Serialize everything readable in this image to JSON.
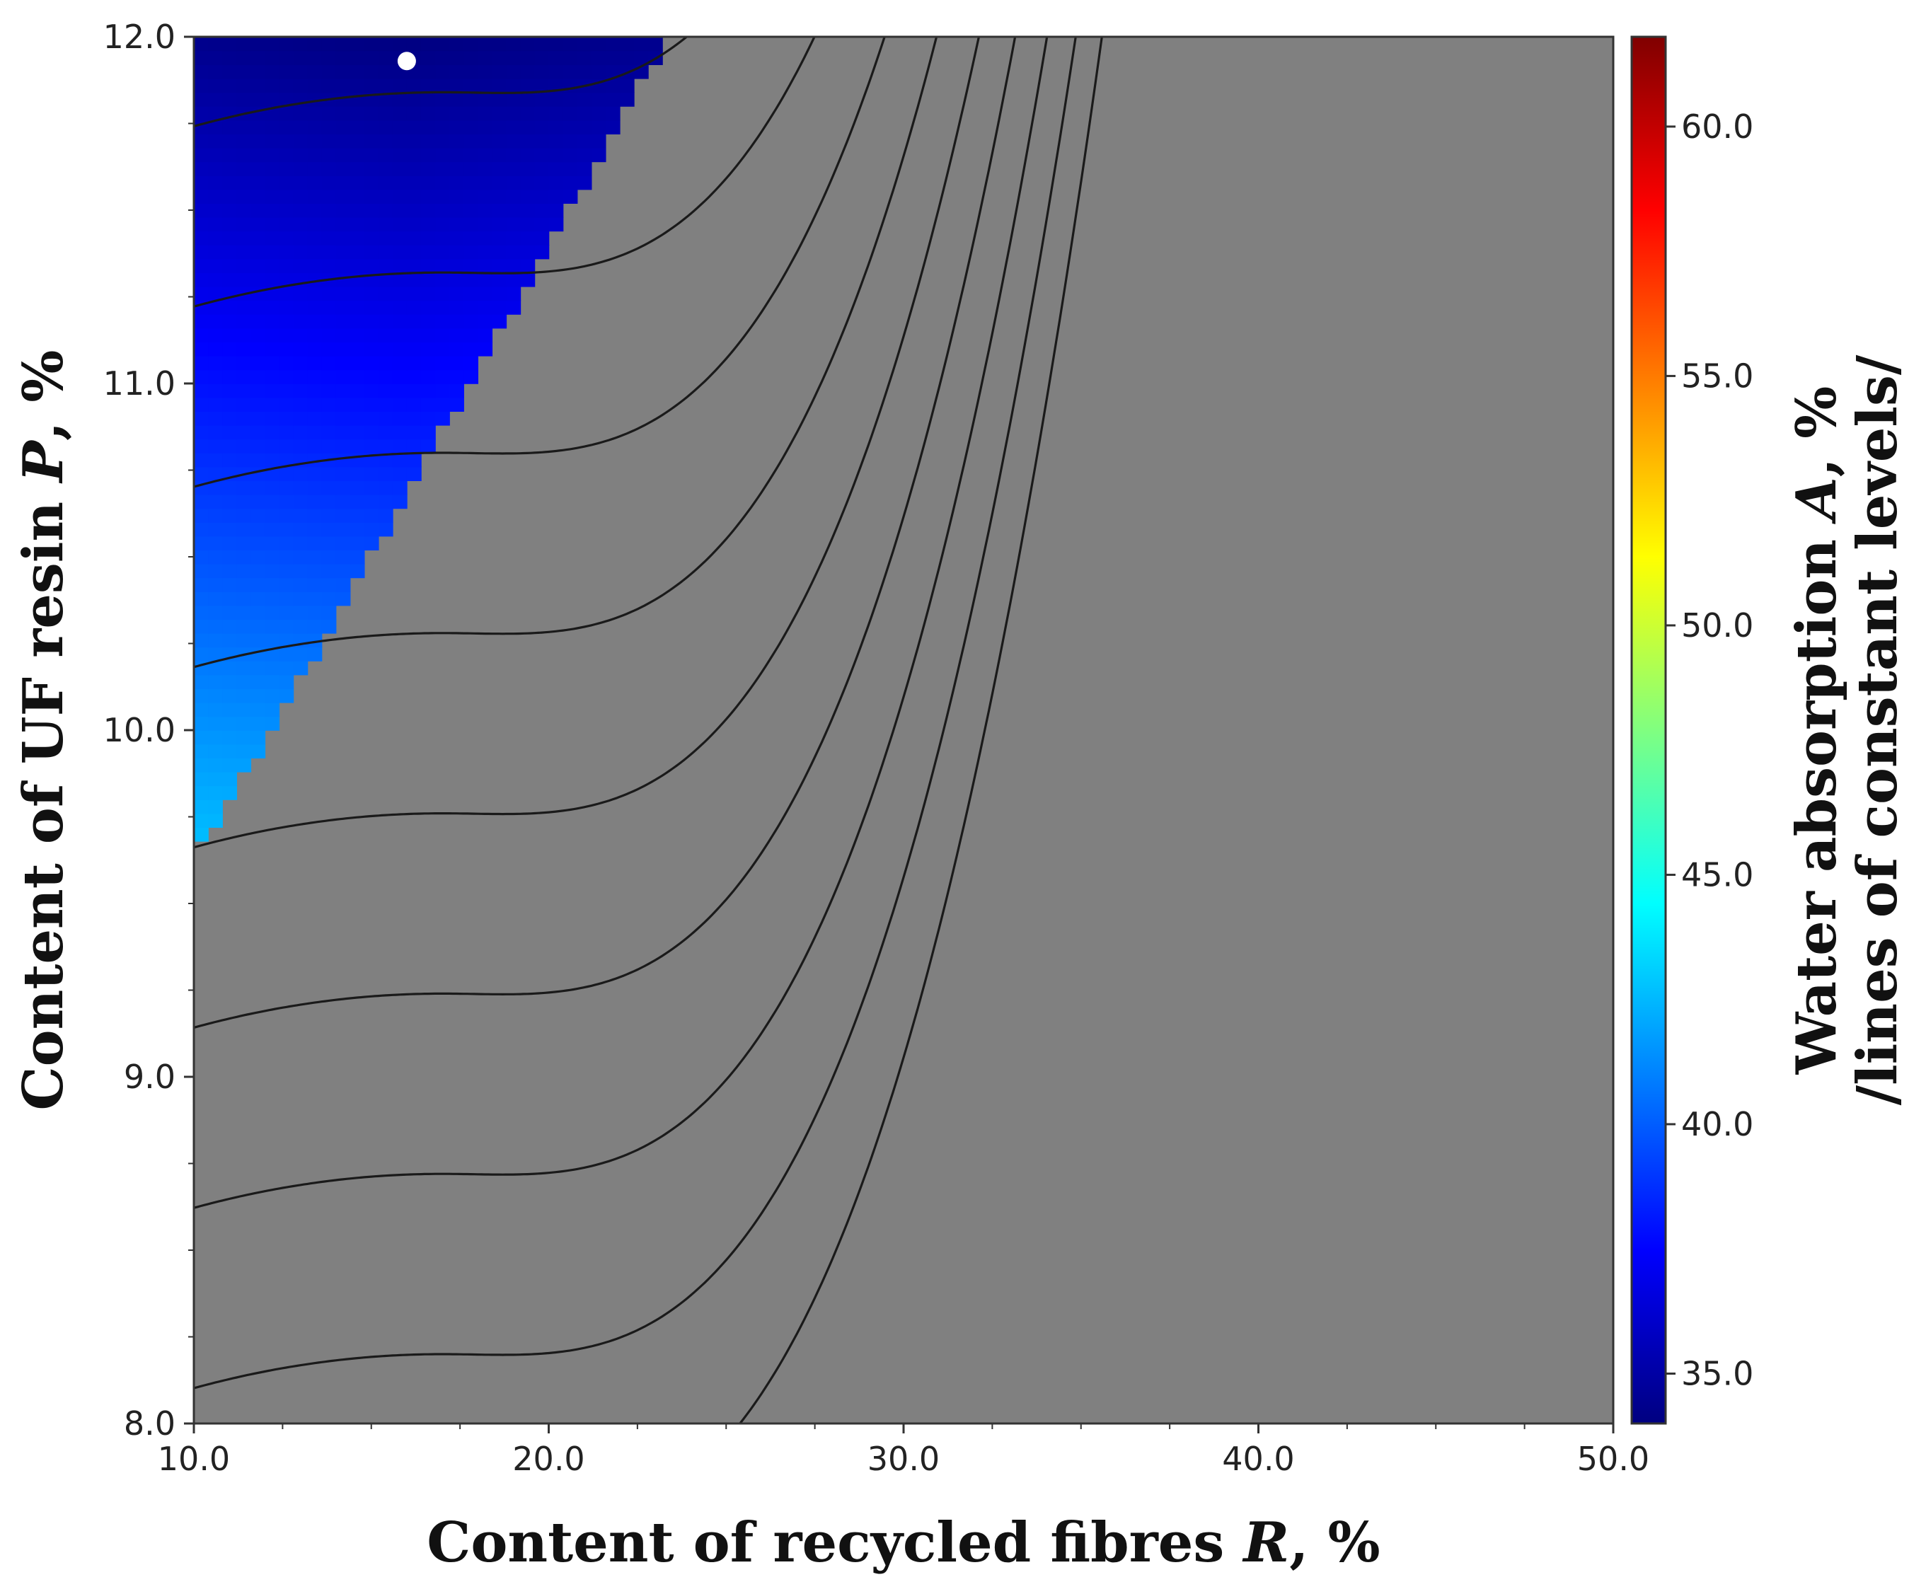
{
  "chart_data": {
    "type": "heatmap",
    "subtype": "contour-surface",
    "x_axis": {
      "label_parts": [
        "Content of recycled fibres ",
        "R",
        ", %"
      ],
      "range": [
        10.0,
        50.0
      ],
      "ticks": [
        10.0,
        20.0,
        30.0,
        40.0,
        50.0
      ],
      "tick_labels": [
        "10.0",
        "20.0",
        "30.0",
        "40.0",
        "50.0"
      ]
    },
    "y_axis": {
      "label_parts": [
        "Content of UF resin ",
        "P",
        ", %"
      ],
      "range": [
        8.0,
        12.0
      ],
      "ticks": [
        8.0,
        9.0,
        10.0,
        11.0,
        12.0
      ],
      "tick_labels": [
        "8.0",
        "9.0",
        "10.0",
        "11.0",
        "12.0"
      ]
    },
    "colorbar": {
      "label_line1_parts": [
        "Water absorption ",
        "A",
        ", %"
      ],
      "label_line2": "/lines of constant levels/",
      "range": [
        34.0,
        61.8
      ],
      "ticks": [
        35.0,
        40.0,
        45.0,
        50.0,
        55.0,
        60.0
      ],
      "tick_labels": [
        "35.0",
        "40.0",
        "45.0",
        "50.0",
        "55.0",
        "60.0"
      ],
      "colors": [
        "#000080",
        "#0000ff",
        "#0080ff",
        "#00ffff",
        "#80ff80",
        "#ffff00",
        "#ff8000",
        "#ff0000",
        "#800000"
      ]
    },
    "contour_levels_at_R10": [
      11.73,
      11.22,
      10.71,
      10.17,
      9.67,
      9.15,
      8.62,
      8.08
    ],
    "masked_region_color": "#808080",
    "optimum_marker": {
      "R": 16.0,
      "P": 11.93,
      "color": "#ffffff"
    },
    "grid": false
  }
}
